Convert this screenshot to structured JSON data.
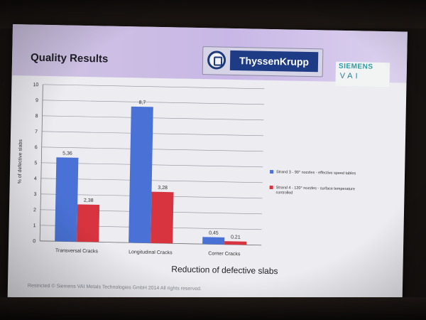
{
  "slide": {
    "title": "Quality Results",
    "logo_text": "ThyssenKrupp",
    "siemens_text": "SIEMENS",
    "vai_text": "VAI",
    "footer": "Restricted © Siemens VAI Metals Technologies GmbH 2014 All rights reserved."
  },
  "colors": {
    "series_blue": "#4a72d6",
    "series_red": "#d8343f",
    "logo_blue": "#1e3c86"
  },
  "chart_data": {
    "type": "bar",
    "title": "",
    "xlabel": "Reduction of defective slabs",
    "ylabel": "% of defective slabs",
    "ylim": [
      0,
      10
    ],
    "yticks": [
      "0",
      "1",
      "2",
      "3",
      "4",
      "5",
      "6",
      "7",
      "8",
      "9",
      "10"
    ],
    "grid": true,
    "legend_position": "right",
    "categories": [
      "Transversal Cracks",
      "Longitudinal Cracks",
      "Corner Cracks"
    ],
    "series": [
      {
        "name": "Strand 3 - 90° nozzles - effective speed tables",
        "values": [
          5.36,
          8.7,
          0.45
        ],
        "labels": [
          "5,36",
          "8,7",
          "0,45"
        ]
      },
      {
        "name": "Strand 4 - 120° nozzles - surface temperature controlled",
        "values": [
          2.38,
          3.28,
          0.21
        ],
        "labels": [
          "2,38",
          "3,28",
          "0,21"
        ]
      }
    ]
  }
}
